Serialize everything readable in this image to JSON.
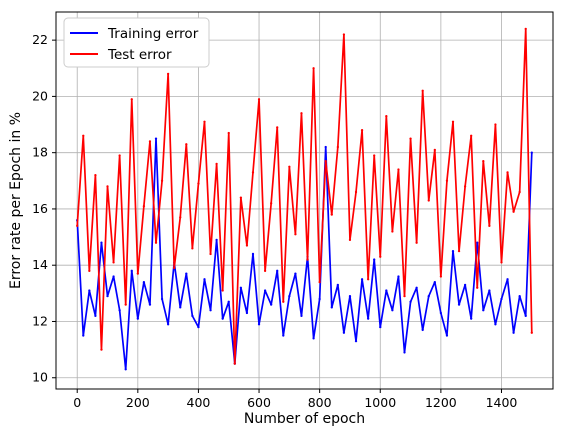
{
  "chart_data": {
    "type": "line",
    "title": "",
    "xlabel": "Number of epoch",
    "ylabel": "Error rate per Epoch in %",
    "xlim": [
      -70,
      1570
    ],
    "ylim": [
      9.6,
      23.0
    ],
    "xticks": [
      0,
      200,
      400,
      600,
      800,
      1000,
      1200,
      1400
    ],
    "yticks": [
      10,
      12,
      14,
      16,
      18,
      20,
      22
    ],
    "xtick_labels": [
      "0",
      "200",
      "400",
      "600",
      "800",
      "1000",
      "1200",
      "1400"
    ],
    "ytick_labels": [
      "10",
      "12",
      "14",
      "16",
      "18",
      "20",
      "22"
    ],
    "grid": true,
    "legend": {
      "position": "top-left",
      "entries": [
        "Training error",
        "Test error"
      ]
    },
    "series": [
      {
        "name": "Training error",
        "color": "#0000ff",
        "x": [
          0,
          20,
          40,
          60,
          80,
          100,
          120,
          140,
          160,
          180,
          200,
          220,
          240,
          260,
          280,
          300,
          320,
          340,
          360,
          380,
          400,
          420,
          440,
          460,
          480,
          500,
          520,
          540,
          560,
          580,
          600,
          620,
          640,
          660,
          680,
          700,
          720,
          740,
          760,
          780,
          800,
          820,
          840,
          860,
          880,
          900,
          920,
          940,
          960,
          980,
          1000,
          1020,
          1040,
          1060,
          1080,
          1100,
          1120,
          1140,
          1160,
          1180,
          1200,
          1220,
          1240,
          1260,
          1280,
          1300,
          1320,
          1340,
          1360,
          1380,
          1400,
          1420,
          1440,
          1460,
          1480,
          1500
        ],
        "y": [
          15.6,
          11.5,
          13.1,
          12.2,
          14.8,
          12.9,
          13.6,
          12.4,
          10.3,
          13.8,
          12.1,
          13.4,
          12.6,
          18.5,
          12.8,
          11.9,
          14.1,
          12.5,
          13.7,
          12.2,
          11.8,
          13.5,
          12.4,
          14.9,
          12.1,
          12.7,
          10.5,
          13.2,
          12.3,
          14.4,
          11.9,
          13.1,
          12.6,
          13.8,
          11.5,
          12.9,
          13.7,
          12.2,
          14.3,
          11.4,
          12.8,
          18.2,
          12.5,
          13.3,
          11.6,
          12.9,
          11.3,
          13.5,
          12.1,
          14.2,
          11.8,
          13.1,
          12.4,
          13.6,
          10.9,
          12.7,
          13.2,
          11.7,
          12.9,
          13.4,
          12.3,
          11.5,
          14.5,
          12.6,
          13.3,
          12.1,
          14.8,
          12.4,
          13.1,
          11.9,
          12.8,
          13.5,
          11.6,
          12.9,
          12.2,
          18.0
        ]
      },
      {
        "name": "Test error",
        "color": "#ff0000",
        "x": [
          0,
          20,
          40,
          60,
          80,
          100,
          120,
          140,
          160,
          180,
          200,
          220,
          240,
          260,
          280,
          300,
          320,
          340,
          360,
          380,
          400,
          420,
          440,
          460,
          480,
          500,
          520,
          540,
          560,
          580,
          600,
          620,
          640,
          660,
          680,
          700,
          720,
          740,
          760,
          780,
          800,
          820,
          840,
          860,
          880,
          900,
          920,
          940,
          960,
          980,
          1000,
          1020,
          1040,
          1060,
          1080,
          1100,
          1120,
          1140,
          1160,
          1180,
          1200,
          1220,
          1240,
          1260,
          1280,
          1300,
          1320,
          1340,
          1360,
          1380,
          1400,
          1420,
          1440,
          1460,
          1480,
          1500
        ],
        "y": [
          15.4,
          18.6,
          13.8,
          17.2,
          11.0,
          16.8,
          14.1,
          17.9,
          12.6,
          19.9,
          13.7,
          16.1,
          18.4,
          14.8,
          17.0,
          20.8,
          13.9,
          15.7,
          18.3,
          14.6,
          16.9,
          19.1,
          14.4,
          17.6,
          13.1,
          18.7,
          10.5,
          16.4,
          14.7,
          17.3,
          19.9,
          13.8,
          16.2,
          18.9,
          12.7,
          17.5,
          15.1,
          19.4,
          14.2,
          21.0,
          13.4,
          17.7,
          15.8,
          18.2,
          22.2,
          14.9,
          16.6,
          18.8,
          13.5,
          17.9,
          14.3,
          19.3,
          15.2,
          17.4,
          12.9,
          18.5,
          14.8,
          20.2,
          16.3,
          18.1,
          13.6,
          17.0,
          19.1,
          14.5,
          16.8,
          18.6,
          13.2,
          17.7,
          15.4,
          19.0,
          14.1,
          17.3,
          15.9,
          16.6,
          22.4,
          11.6
        ]
      }
    ]
  }
}
